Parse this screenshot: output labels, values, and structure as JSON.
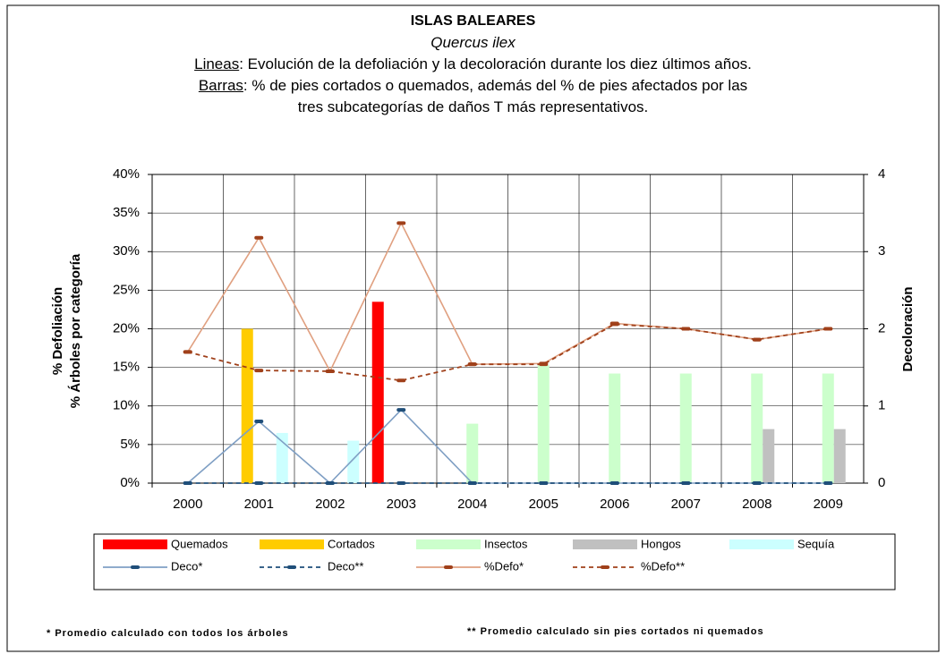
{
  "chart_data": {
    "type": "bar_line",
    "title": "ISLAS BALEARES",
    "subtitle": "Quercus ilex",
    "description": [
      "Lineas",
      ": Evolución de la defoliación y la decoloración durante los diez últimos años. ",
      "Barras",
      ": % de pies cortados o quemados, además del % de pies afectados por las tres subcategorías de daños T más representativos."
    ],
    "y_label": [
      "% Defoliación",
      "% Árboles por categoría"
    ],
    "y2_label": "Decoloración",
    "categories": [
      "2000",
      "2001",
      "2002",
      "2003",
      "2004",
      "2005",
      "2006",
      "2007",
      "2008",
      "2009"
    ],
    "series": [
      {
        "name": "Quemados",
        "color": "#ff0000",
        "values": [
          0,
          0,
          0,
          23.5,
          0,
          0,
          0,
          0,
          0,
          0
        ]
      },
      {
        "name": "Cortados",
        "color": "#ffcc00",
        "values": [
          0,
          20,
          0,
          0,
          0,
          0,
          0,
          0,
          0,
          0
        ]
      },
      {
        "name": "Insectos",
        "color": "#ccffcc",
        "values": [
          0,
          0,
          0,
          0,
          7.7,
          15.3,
          14.2,
          14.2,
          14.2,
          14.2
        ]
      },
      {
        "name": "Hongos",
        "color": "#c0c0c0",
        "values": [
          0,
          0,
          0,
          0,
          0,
          0,
          0,
          0,
          7,
          7
        ]
      },
      {
        "name": "Sequía",
        "color": "#ccffff",
        "values": [
          0,
          6.5,
          5.5,
          0,
          0,
          0,
          0,
          0,
          0,
          0
        ]
      }
    ],
    "lines": [
      {
        "name": "Deco*",
        "color": "#7f9fc4",
        "marker_color": "#1f4e79",
        "dash": false,
        "axis": "y2",
        "values": [
          0,
          0.8,
          0,
          0.95,
          0,
          0,
          0,
          0,
          0,
          0
        ]
      },
      {
        "name": "Deco**",
        "color": "#1f4e79",
        "marker_color": "#1f4e79",
        "dash": true,
        "axis": "y2",
        "values": [
          0,
          0,
          0,
          0,
          0,
          0,
          0,
          0,
          0,
          0
        ]
      },
      {
        "name": "%Defo*",
        "color": "#e0a080",
        "marker_color": "#a0401a",
        "dash": false,
        "axis": "y",
        "values": [
          17,
          31.8,
          14.5,
          33.7,
          15.4,
          15.5,
          20.7,
          20,
          18.6,
          20
        ]
      },
      {
        "name": "%Defo**",
        "color": "#a0401a",
        "marker_color": "#a0401a",
        "dash": true,
        "axis": "y",
        "values": [
          17,
          14.6,
          14.5,
          13.3,
          15.4,
          15.4,
          20.6,
          20,
          18.6,
          20
        ]
      }
    ],
    "ylim": [
      0,
      40
    ],
    "yticks": [
      {
        "value": 0,
        "label": "0%"
      },
      {
        "value": 5,
        "label": "5%"
      },
      {
        "value": 10,
        "label": "10%"
      },
      {
        "value": 15,
        "label": "15%"
      },
      {
        "value": 20,
        "label": "20%"
      },
      {
        "value": 25,
        "label": "25%"
      },
      {
        "value": 30,
        "label": "30%"
      },
      {
        "value": 35,
        "label": "35%"
      },
      {
        "value": 40,
        "label": "40%"
      }
    ],
    "y2lim": [
      0,
      4
    ],
    "y2ticks": [
      0,
      1,
      2,
      3,
      4
    ],
    "grid": true,
    "footnotes": [
      "* Promedio calculado con todos los árboles",
      "** Promedio calculado sin pies cortados ni quemados"
    ]
  }
}
